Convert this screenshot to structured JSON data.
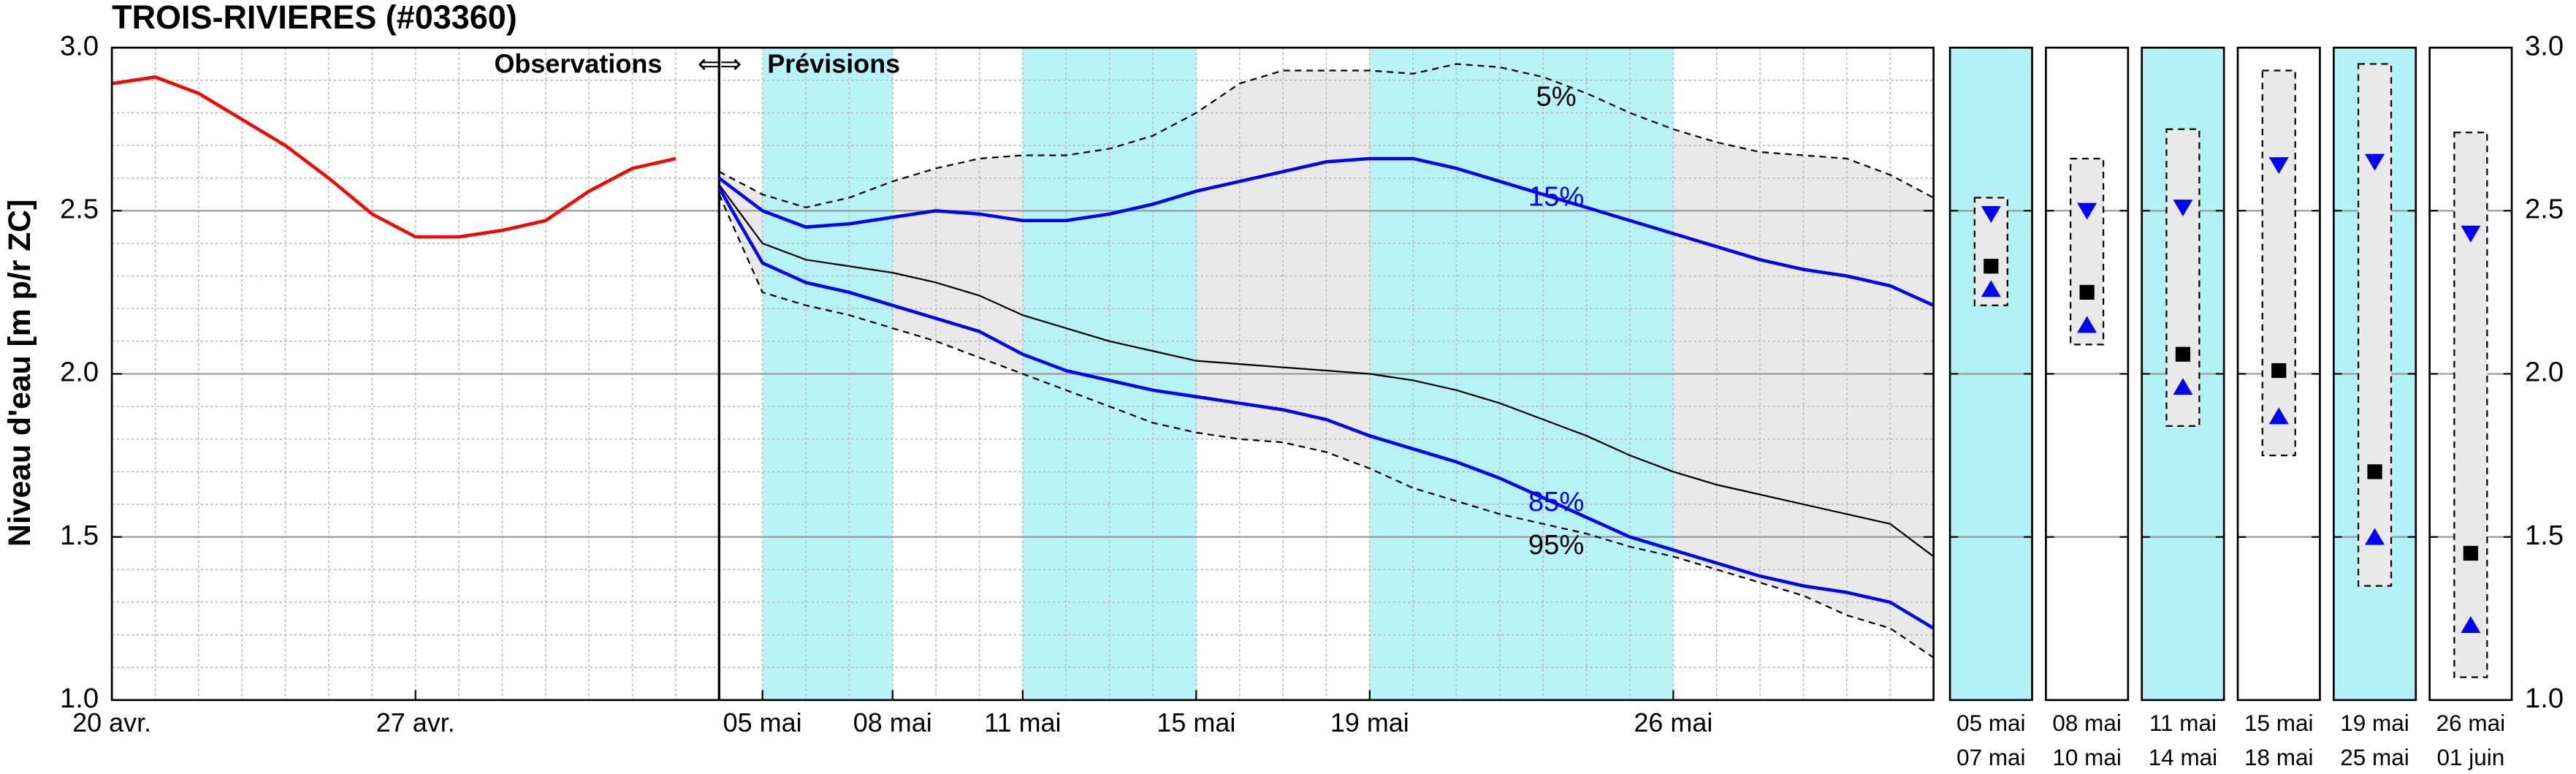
{
  "chart_data": [
    {
      "type": "line",
      "title": "TROIS-RIVIERES (#03360)",
      "ylabel": "Niveau d'eau [m p/r ZC]",
      "annotations": [
        "Observations",
        "⇐⇒",
        "Prévisions"
      ],
      "forecast_start": 14,
      "highlight_periods": [
        [
          15,
          18
        ],
        [
          21,
          25
        ],
        [
          29,
          36
        ]
      ],
      "highlight_color": "#b2f2f7",
      "range_fill": "#e9e9e9",
      "grid": true,
      "x": [
        0,
        1,
        2,
        3,
        4,
        5,
        6,
        7,
        8,
        9,
        10,
        11,
        12,
        13,
        14,
        15,
        16,
        17,
        18,
        19,
        20,
        21,
        22,
        23,
        24,
        25,
        26,
        27,
        28,
        29,
        30,
        31,
        32,
        33,
        34,
        35,
        36,
        37,
        38,
        39,
        40,
        41,
        42
      ],
      "xlim": [
        0,
        42
      ],
      "xticks": [
        {
          "value": 0,
          "label": "20 avr."
        },
        {
          "value": 7,
          "label": "27 avr."
        },
        {
          "value": 15,
          "label": "05 mai"
        },
        {
          "value": 18,
          "label": "08 mai"
        },
        {
          "value": 21,
          "label": "11 mai"
        },
        {
          "value": 25,
          "label": "15 mai"
        },
        {
          "value": 29,
          "label": "19 mai"
        },
        {
          "value": 36,
          "label": "26 mai"
        }
      ],
      "ylim": [
        1,
        3
      ],
      "yticks": [
        {
          "value": 1,
          "label": "1.0"
        },
        1.5,
        {
          "value": 2,
          "label": "2.0"
        },
        2.5,
        {
          "value": 3,
          "label": "3.0"
        }
      ],
      "series": [
        {
          "color": "#ff0000",
          "style": "solid",
          "values": [
            2.89,
            2.91,
            2.86,
            2.78,
            2.7,
            2.6,
            2.49,
            2.42,
            2.42,
            2.44,
            2.47,
            2.56,
            2.63,
            2.66,
            null,
            null,
            null,
            null,
            null,
            null,
            null,
            null,
            null,
            null,
            null,
            null,
            null,
            null,
            null,
            null,
            null,
            null,
            null,
            null,
            null,
            null,
            null,
            null,
            null,
            null,
            null,
            null,
            null
          ]
        },
        {
          "name": "5%",
          "color": "#000000",
          "style": "dashed",
          "values": [
            null,
            null,
            null,
            null,
            null,
            null,
            null,
            null,
            null,
            null,
            null,
            null,
            null,
            null,
            2.62,
            2.55,
            2.51,
            2.54,
            2.59,
            2.63,
            2.66,
            2.67,
            2.67,
            2.69,
            2.73,
            2.8,
            2.89,
            2.93,
            2.93,
            2.93,
            2.92,
            2.95,
            2.94,
            2.91,
            2.86,
            2.8,
            2.75,
            2.71,
            2.68,
            2.67,
            2.66,
            2.61,
            2.54
          ]
        },
        {
          "name": "15%",
          "color": "#0000ff",
          "style": "solid",
          "values": [
            null,
            null,
            null,
            null,
            null,
            null,
            null,
            null,
            null,
            null,
            null,
            null,
            null,
            null,
            2.6,
            2.5,
            2.45,
            2.46,
            2.48,
            2.5,
            2.49,
            2.47,
            2.47,
            2.49,
            2.52,
            2.56,
            2.59,
            2.62,
            2.65,
            2.66,
            2.66,
            2.63,
            2.59,
            2.55,
            2.51,
            2.47,
            2.43,
            2.39,
            2.35,
            2.32,
            2.3,
            2.27,
            2.21
          ]
        },
        {
          "color": "#000000",
          "style": "thin",
          "values": [
            null,
            null,
            null,
            null,
            null,
            null,
            null,
            null,
            null,
            null,
            null,
            null,
            null,
            null,
            2.58,
            2.4,
            2.35,
            2.33,
            2.31,
            2.28,
            2.24,
            2.18,
            2.14,
            2.1,
            2.07,
            2.04,
            2.03,
            2.02,
            2.01,
            2.0,
            1.98,
            1.95,
            1.91,
            1.86,
            1.81,
            1.75,
            1.7,
            1.66,
            1.63,
            1.6,
            1.57,
            1.54,
            1.44
          ]
        },
        {
          "name": "85%",
          "color": "#0000ff",
          "style": "solid",
          "values": [
            null,
            null,
            null,
            null,
            null,
            null,
            null,
            null,
            null,
            null,
            null,
            null,
            null,
            null,
            2.57,
            2.34,
            2.28,
            2.25,
            2.21,
            2.17,
            2.13,
            2.06,
            2.01,
            1.98,
            1.95,
            1.93,
            1.91,
            1.89,
            1.86,
            1.81,
            1.77,
            1.73,
            1.68,
            1.62,
            1.56,
            1.5,
            1.46,
            1.42,
            1.38,
            1.35,
            1.33,
            1.3,
            1.22
          ]
        },
        {
          "name": "95%",
          "color": "#000000",
          "style": "dashed",
          "values": [
            null,
            null,
            null,
            null,
            null,
            null,
            null,
            null,
            null,
            null,
            null,
            null,
            null,
            null,
            2.55,
            2.25,
            2.21,
            2.18,
            2.14,
            2.1,
            2.05,
            2.0,
            1.95,
            1.9,
            1.85,
            1.82,
            1.8,
            1.79,
            1.76,
            1.71,
            1.65,
            1.61,
            1.57,
            1.54,
            1.51,
            1.47,
            1.44,
            1.4,
            1.36,
            1.32,
            1.26,
            1.22,
            1.13
          ]
        }
      ]
    },
    {
      "type": "range",
      "categories": [
        [
          "05 mai",
          "07 mai"
        ],
        [
          "08 mai",
          "10 mai"
        ],
        [
          "11 mai",
          "14 mai"
        ],
        [
          "15 mai",
          "18 mai"
        ],
        [
          "19 mai",
          "25 mai"
        ],
        [
          "26 mai",
          "01 juin"
        ]
      ],
      "colors": [
        "#b2f2f7",
        "#ffffff",
        "#b2f2f7",
        "#ffffff",
        "#b2f2f7",
        "#ffffff"
      ],
      "ylim": [
        1,
        3
      ],
      "yticks": [
        {
          "value": 1,
          "label": "1.0"
        },
        1.5,
        {
          "value": 2,
          "label": "2.0"
        },
        2.5,
        {
          "value": 3,
          "label": "3.0"
        }
      ],
      "max": [
        2.54,
        2.66,
        2.75,
        2.93,
        2.95,
        2.74
      ],
      "upper": [
        2.49,
        2.5,
        2.51,
        2.64,
        2.65,
        2.43
      ],
      "median": [
        2.33,
        2.25,
        2.06,
        2.01,
        1.7,
        1.45
      ],
      "lower": [
        2.26,
        2.15,
        1.96,
        1.87,
        1.5,
        1.23
      ],
      "min": [
        2.21,
        2.09,
        1.84,
        1.75,
        1.35,
        1.07
      ],
      "marker_color": "#0000ff",
      "median_color": "#000000",
      "box_fill": "#e9e9e9"
    }
  ]
}
